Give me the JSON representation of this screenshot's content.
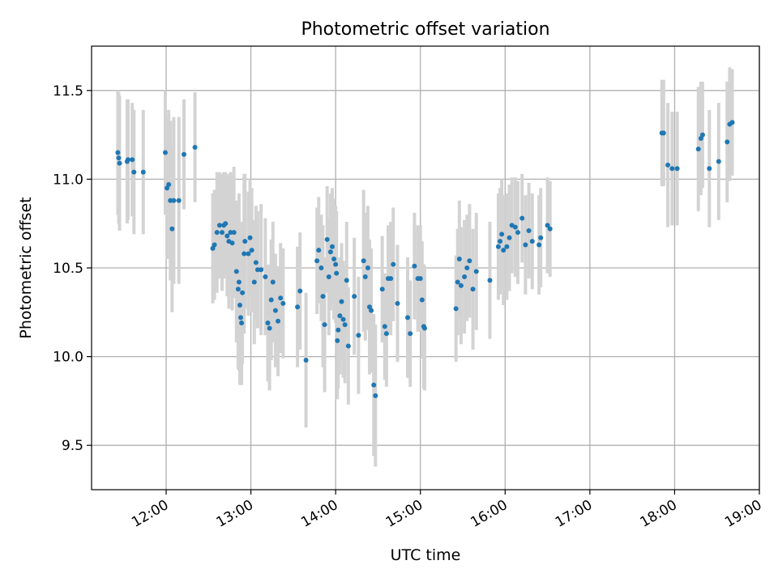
{
  "chart_data": {
    "type": "scatter",
    "title": "Photometric offset variation",
    "xlabel": "UTC time",
    "ylabel": "Photometric offset",
    "x_unit": "hours (UTC, decimal)",
    "xlim": [
      11.12,
      19.0
    ],
    "ylim": [
      9.25,
      11.75
    ],
    "grid": true,
    "x_ticks": [
      {
        "value": 12,
        "label": "12:00"
      },
      {
        "value": 13,
        "label": "13:00"
      },
      {
        "value": 14,
        "label": "14:00"
      },
      {
        "value": 15,
        "label": "15:00"
      },
      {
        "value": 16,
        "label": "16:00"
      },
      {
        "value": 17,
        "label": "17:00"
      },
      {
        "value": 18,
        "label": "18:00"
      },
      {
        "value": 19,
        "label": "19:00"
      }
    ],
    "y_ticks": [
      {
        "value": 9.5,
        "label": "9.5"
      },
      {
        "value": 10.0,
        "label": "10.0"
      },
      {
        "value": 10.5,
        "label": "10.5"
      },
      {
        "value": 11.0,
        "label": "11.0"
      },
      {
        "value": 11.5,
        "label": "11.5"
      }
    ],
    "colors": {
      "point": "#1f77b4",
      "errorbar": "#d3d3d3",
      "grid": "#b0b0b0"
    },
    "points": [
      [
        11.43,
        11.15,
        0.35
      ],
      [
        11.44,
        11.12,
        0.37
      ],
      [
        11.45,
        11.09,
        0.38
      ],
      [
        11.54,
        11.1,
        0.35
      ],
      [
        11.55,
        11.11,
        0.34
      ],
      [
        11.6,
        11.11,
        0.32
      ],
      [
        11.62,
        11.04,
        0.35
      ],
      [
        11.73,
        11.04,
        0.35
      ],
      [
        11.99,
        11.15,
        0.35
      ],
      [
        12.01,
        10.95,
        0.4
      ],
      [
        12.03,
        10.97,
        0.42
      ],
      [
        12.05,
        10.88,
        0.45
      ],
      [
        12.07,
        10.72,
        0.47
      ],
      [
        12.09,
        10.88,
        0.47
      ],
      [
        12.15,
        10.88,
        0.47
      ],
      [
        12.21,
        11.14,
        0.31
      ],
      [
        12.34,
        11.18,
        0.31
      ],
      [
        12.55,
        10.61,
        0.31
      ],
      [
        12.57,
        10.63,
        0.31
      ],
      [
        12.6,
        10.7,
        0.34
      ],
      [
        12.63,
        10.74,
        0.3
      ],
      [
        12.66,
        10.7,
        0.33
      ],
      [
        12.68,
        10.74,
        0.3
      ],
      [
        12.7,
        10.75,
        0.29
      ],
      [
        12.72,
        10.68,
        0.34
      ],
      [
        12.74,
        10.65,
        0.38
      ],
      [
        12.76,
        10.7,
        0.34
      ],
      [
        12.78,
        10.64,
        0.38
      ],
      [
        12.8,
        10.7,
        0.37
      ],
      [
        12.83,
        10.48,
        0.4
      ],
      [
        12.85,
        10.38,
        0.45
      ],
      [
        12.86,
        10.42,
        0.5
      ],
      [
        12.87,
        10.29,
        0.45
      ],
      [
        12.88,
        10.22,
        0.38
      ],
      [
        12.89,
        10.19,
        0.35
      ],
      [
        12.9,
        10.36,
        0.4
      ],
      [
        12.92,
        10.58,
        0.45
      ],
      [
        12.93,
        10.65,
        0.38
      ],
      [
        12.97,
        10.58,
        0.35
      ],
      [
        12.99,
        10.67,
        0.33
      ],
      [
        13.01,
        10.6,
        0.35
      ],
      [
        13.04,
        10.42,
        0.35
      ],
      [
        13.06,
        10.53,
        0.32
      ],
      [
        13.08,
        10.49,
        0.33
      ],
      [
        13.12,
        10.49,
        0.37
      ],
      [
        13.17,
        10.45,
        0.33
      ],
      [
        13.2,
        10.19,
        0.33
      ],
      [
        13.22,
        10.16,
        0.35
      ],
      [
        13.24,
        10.32,
        0.34
      ],
      [
        13.26,
        10.42,
        0.34
      ],
      [
        13.29,
        10.26,
        0.32
      ],
      [
        13.32,
        10.2,
        0.31
      ],
      [
        13.35,
        10.33,
        0.31
      ],
      [
        13.38,
        10.3,
        0.31
      ],
      [
        13.55,
        10.28,
        0.34
      ],
      [
        13.58,
        10.37,
        0.33
      ],
      [
        13.65,
        9.98,
        0.38
      ],
      [
        13.78,
        10.54,
        0.3
      ],
      [
        13.8,
        10.6,
        0.3
      ],
      [
        13.83,
        10.5,
        0.3
      ],
      [
        13.85,
        10.34,
        0.4
      ],
      [
        13.87,
        10.18,
        0.38
      ],
      [
        13.9,
        10.66,
        0.3
      ],
      [
        13.92,
        10.45,
        0.33
      ],
      [
        13.94,
        10.59,
        0.33
      ],
      [
        13.96,
        10.62,
        0.33
      ],
      [
        13.98,
        10.55,
        0.34
      ],
      [
        14.0,
        10.52,
        0.33
      ],
      [
        14.01,
        10.47,
        0.35
      ],
      [
        14.02,
        10.09,
        0.33
      ],
      [
        14.03,
        10.15,
        0.33
      ],
      [
        14.05,
        10.23,
        0.33
      ],
      [
        14.07,
        10.31,
        0.33
      ],
      [
        14.09,
        10.21,
        0.33
      ],
      [
        14.11,
        10.18,
        0.33
      ],
      [
        14.13,
        10.43,
        0.33
      ],
      [
        14.15,
        10.06,
        0.33
      ],
      [
        14.22,
        10.34,
        0.33
      ],
      [
        14.27,
        10.12,
        0.33
      ],
      [
        14.33,
        10.54,
        0.4
      ],
      [
        14.35,
        10.45,
        0.36
      ],
      [
        14.38,
        10.5,
        0.35
      ],
      [
        14.4,
        10.28,
        0.38
      ],
      [
        14.42,
        10.26,
        0.35
      ],
      [
        14.45,
        9.84,
        0.4
      ],
      [
        14.47,
        9.78,
        0.4
      ],
      [
        14.55,
        10.38,
        0.3
      ],
      [
        14.58,
        10.17,
        0.3
      ],
      [
        14.6,
        10.13,
        0.3
      ],
      [
        14.62,
        10.44,
        0.3
      ],
      [
        14.65,
        10.44,
        0.32
      ],
      [
        14.68,
        10.52,
        0.32
      ],
      [
        14.73,
        10.3,
        0.33
      ],
      [
        14.85,
        10.22,
        0.34
      ],
      [
        14.88,
        10.13,
        0.3
      ],
      [
        14.93,
        10.51,
        0.3
      ],
      [
        14.97,
        10.44,
        0.3
      ],
      [
        15.0,
        10.44,
        0.3
      ],
      [
        15.02,
        10.32,
        0.33
      ],
      [
        15.04,
        10.17,
        0.35
      ],
      [
        15.05,
        10.16,
        0.35
      ],
      [
        15.42,
        10.27,
        0.3
      ],
      [
        15.44,
        10.42,
        0.3
      ],
      [
        15.46,
        10.55,
        0.33
      ],
      [
        15.48,
        10.4,
        0.33
      ],
      [
        15.52,
        10.45,
        0.32
      ],
      [
        15.55,
        10.5,
        0.3
      ],
      [
        15.58,
        10.54,
        0.32
      ],
      [
        15.62,
        10.38,
        0.34
      ],
      [
        15.66,
        10.48,
        0.33
      ],
      [
        15.82,
        10.43,
        0.33
      ],
      [
        15.92,
        10.62,
        0.3
      ],
      [
        15.94,
        10.65,
        0.3
      ],
      [
        15.96,
        10.69,
        0.31
      ],
      [
        15.98,
        10.6,
        0.31
      ],
      [
        16.02,
        10.62,
        0.3
      ],
      [
        16.05,
        10.67,
        0.3
      ],
      [
        16.08,
        10.74,
        0.27
      ],
      [
        16.12,
        10.73,
        0.28
      ],
      [
        16.15,
        10.7,
        0.29
      ],
      [
        16.2,
        10.78,
        0.25
      ],
      [
        16.24,
        10.63,
        0.28
      ],
      [
        16.28,
        10.71,
        0.27
      ],
      [
        16.32,
        10.65,
        0.27
      ],
      [
        16.4,
        10.63,
        0.28
      ],
      [
        16.42,
        10.67,
        0.28
      ],
      [
        16.5,
        10.74,
        0.27
      ],
      [
        16.53,
        10.72,
        0.27
      ],
      [
        17.85,
        11.26,
        0.3
      ],
      [
        17.87,
        11.26,
        0.3
      ],
      [
        17.92,
        11.08,
        0.35
      ],
      [
        17.97,
        11.06,
        0.32
      ],
      [
        18.03,
        11.06,
        0.32
      ],
      [
        18.28,
        11.17,
        0.35
      ],
      [
        18.31,
        11.23,
        0.32
      ],
      [
        18.33,
        11.25,
        0.3
      ],
      [
        18.41,
        11.06,
        0.33
      ],
      [
        18.52,
        11.1,
        0.33
      ],
      [
        18.62,
        11.21,
        0.34
      ],
      [
        18.65,
        11.31,
        0.32
      ],
      [
        18.68,
        11.32,
        0.3
      ]
    ]
  }
}
